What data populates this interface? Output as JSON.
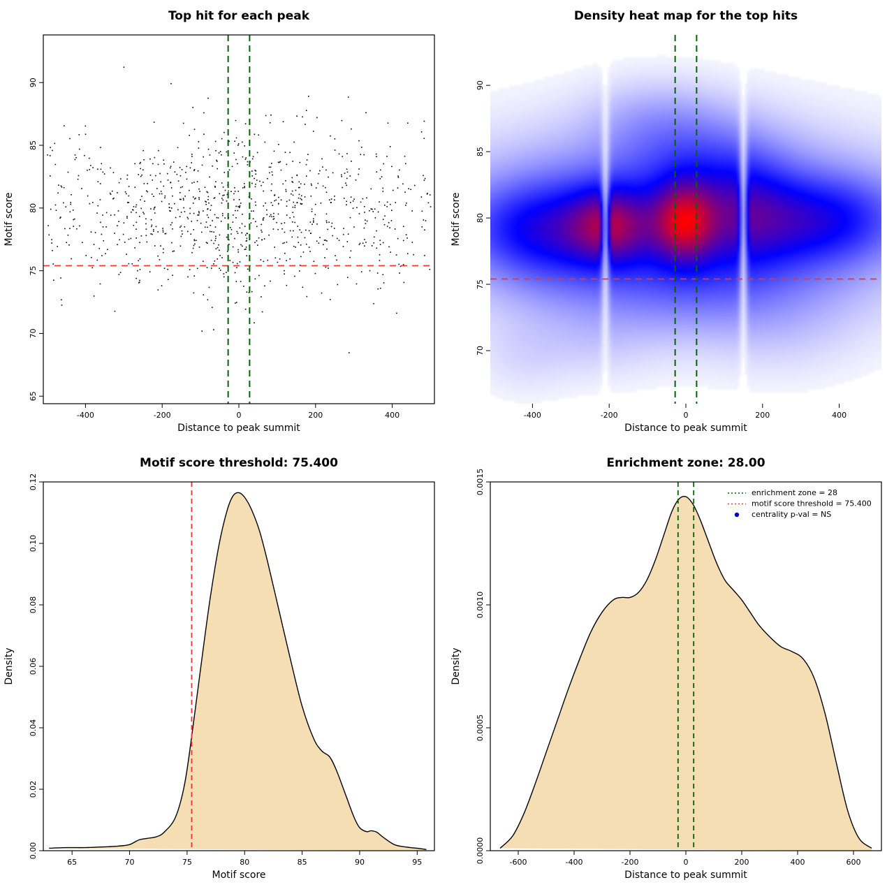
{
  "figure": {
    "background": "#ffffff",
    "layout": "2x2"
  },
  "colors": {
    "threshold_red": "#e8372d",
    "zone_green": "#006400",
    "legend_blue": "#0000cd",
    "density_fill": "#f5deb3",
    "point_black": "#000000"
  },
  "chart_data": [
    {
      "type": "scatter",
      "title": "Top hit for each peak",
      "xlabel": "Distance to peak summit",
      "ylabel": "Motif score",
      "xlim": [
        -510,
        510
      ],
      "ylim": [
        64.4,
        93.8
      ],
      "xticks": [
        -400,
        -200,
        0,
        200,
        400
      ],
      "yticks": [
        65,
        70,
        75,
        80,
        85,
        90
      ],
      "points": {
        "n": 980,
        "seed": 12,
        "x_uniform_frac": 0.62,
        "x_range": [
          -500,
          500
        ],
        "x_gauss_sd": 170,
        "y_mean": 79.9,
        "y_sd": 3.35,
        "y_clip": [
          64.8,
          93.4
        ]
      },
      "point_color": "#000000",
      "threshold_line": {
        "y": 75.4,
        "color": "#e8372d",
        "pattern": "dashed"
      },
      "zone_lines": {
        "x": [
          -28,
          28
        ],
        "color": "#006400",
        "pattern": "dashed"
      },
      "boxed": true
    },
    {
      "type": "heatmap",
      "title": "Density heat map for the top hits",
      "xlabel": "Distance to peak summit",
      "ylabel": "Motif score",
      "xlim": [
        -510,
        510
      ],
      "ylim": [
        66,
        93.8
      ],
      "xticks": [
        -400,
        -200,
        0,
        200,
        400
      ],
      "yticks": [
        70,
        75,
        80,
        85,
        90
      ],
      "colormap": [
        "#ffffff",
        "#0000ff",
        "#ff0000"
      ],
      "blobs": [
        [
          0.55,
          -30,
          79.6,
          380,
          4.2
        ],
        [
          0.85,
          -200,
          79.4,
          75,
          1.9
        ],
        [
          1.0,
          -5,
          79.7,
          55,
          2.0
        ],
        [
          0.45,
          150,
          80.3,
          90,
          2.6
        ],
        [
          0.4,
          320,
          79.8,
          110,
          2.2
        ],
        [
          0.3,
          -350,
          79.0,
          90,
          2.5
        ],
        [
          0.25,
          -460,
          79.2,
          100,
          2.2
        ],
        [
          0.2,
          460,
          80.0,
          100,
          2.2
        ],
        [
          0.22,
          30,
          84.5,
          140,
          2.5
        ],
        [
          0.12,
          -80,
          87.5,
          120,
          2.0
        ],
        [
          0.18,
          0,
          74.8,
          250,
          2.5
        ],
        [
          0.06,
          -250,
          70.5,
          120,
          2.0
        ],
        [
          0.06,
          250,
          71.5,
          150,
          2.5
        ],
        [
          0.05,
          -430,
          69.5,
          80,
          2.0
        ]
      ],
      "white_stripes": [
        -210,
        150
      ],
      "threshold_line": {
        "y": 75.4,
        "color": "#e8372d",
        "pattern": "dashed"
      },
      "zone_lines": {
        "x": [
          -28,
          28
        ],
        "color": "#006400",
        "pattern": "dashed"
      },
      "boxed": false
    },
    {
      "type": "area",
      "title": "Motif score threshold: 75.400",
      "xlabel": "Motif score",
      "ylabel": "Density",
      "xlim": [
        62.5,
        96.5
      ],
      "ylim": [
        0,
        0.12
      ],
      "xticks": [
        65,
        70,
        75,
        80,
        85,
        90,
        95
      ],
      "yticks": [
        0,
        0.02,
        0.04,
        0.06,
        0.08,
        0.1,
        0.12
      ],
      "ytick_labels": [
        "0.00",
        "0.02",
        "0.04",
        "0.06",
        "0.08",
        "0.10",
        "0.12"
      ],
      "x": [
        63,
        64.5,
        66,
        67.5,
        69,
        70,
        70.8,
        71.5,
        72.3,
        73,
        74,
        74.8,
        75.5,
        76.2,
        77,
        77.8,
        78.5,
        79,
        79.5,
        80,
        80.6,
        81.3,
        82,
        83,
        84,
        85,
        86,
        86.7,
        87.4,
        88,
        88.8,
        89.5,
        90,
        90.6,
        91,
        91.5,
        92,
        93,
        94,
        95,
        95.8
      ],
      "y": [
        0.0008,
        0.001,
        0.001,
        0.0012,
        0.0015,
        0.002,
        0.0035,
        0.004,
        0.0045,
        0.006,
        0.011,
        0.022,
        0.04,
        0.06,
        0.082,
        0.1,
        0.111,
        0.1155,
        0.1165,
        0.115,
        0.111,
        0.104,
        0.094,
        0.078,
        0.062,
        0.047,
        0.0365,
        0.0325,
        0.0305,
        0.026,
        0.018,
        0.011,
        0.0075,
        0.0062,
        0.0065,
        0.006,
        0.0045,
        0.002,
        0.0012,
        0.0008,
        0.0004
      ],
      "fill": "#f5deb3",
      "stroke": "#000000",
      "vlines": {
        "x": [
          75.4
        ],
        "color": "#e8372d",
        "pattern": "dashed"
      },
      "boxed": true
    },
    {
      "type": "area",
      "title": "Enrichment zone: 28.00",
      "xlabel": "Distance to peak summit",
      "ylabel": "Density",
      "xlim": [
        -700,
        700
      ],
      "ylim": [
        0,
        0.0015
      ],
      "xticks": [
        -600,
        -400,
        -200,
        0,
        200,
        400,
        600
      ],
      "yticks": [
        0,
        0.0005,
        0.001,
        0.0015
      ],
      "ytick_labels": [
        "0.0000",
        "0.0005",
        "0.0010",
        "0.0015"
      ],
      "x": [
        -665,
        -620,
        -580,
        -540,
        -500,
        -460,
        -420,
        -380,
        -340,
        -300,
        -260,
        -230,
        -200,
        -170,
        -140,
        -110,
        -80,
        -50,
        -25,
        0,
        25,
        50,
        80,
        110,
        140,
        170,
        200,
        230,
        260,
        300,
        340,
        380,
        420,
        460,
        500,
        540,
        580,
        620,
        665
      ],
      "y": [
        1e-05,
        6e-05,
        0.00015,
        0.00027,
        0.0004,
        0.00053,
        0.00066,
        0.00078,
        0.00089,
        0.00097,
        0.00102,
        0.00103,
        0.00103,
        0.00105,
        0.0011,
        0.00118,
        0.00128,
        0.00138,
        0.00143,
        0.00144,
        0.00141,
        0.00135,
        0.00126,
        0.00117,
        0.0011,
        0.00106,
        0.00102,
        0.00097,
        0.00092,
        0.00087,
        0.00083,
        0.00081,
        0.00078,
        0.0007,
        0.00055,
        0.00035,
        0.00016,
        5e-05,
        1e-05
      ],
      "fill": "#f5deb3",
      "stroke": "#000000",
      "vlines": {
        "x": [
          -28,
          28
        ],
        "color": "#006400",
        "pattern": "dashed"
      },
      "legend": {
        "items": [
          {
            "label": "enrichment zone = 28",
            "color": "#006400",
            "marker": "dotted-line"
          },
          {
            "label": "motif score threshold = 75.400",
            "color": "#e8372d",
            "marker": "dotted-line"
          },
          {
            "label": "centrality p-val = NS",
            "color": "#0000cd",
            "marker": "point"
          }
        ]
      },
      "boxed": true
    }
  ]
}
